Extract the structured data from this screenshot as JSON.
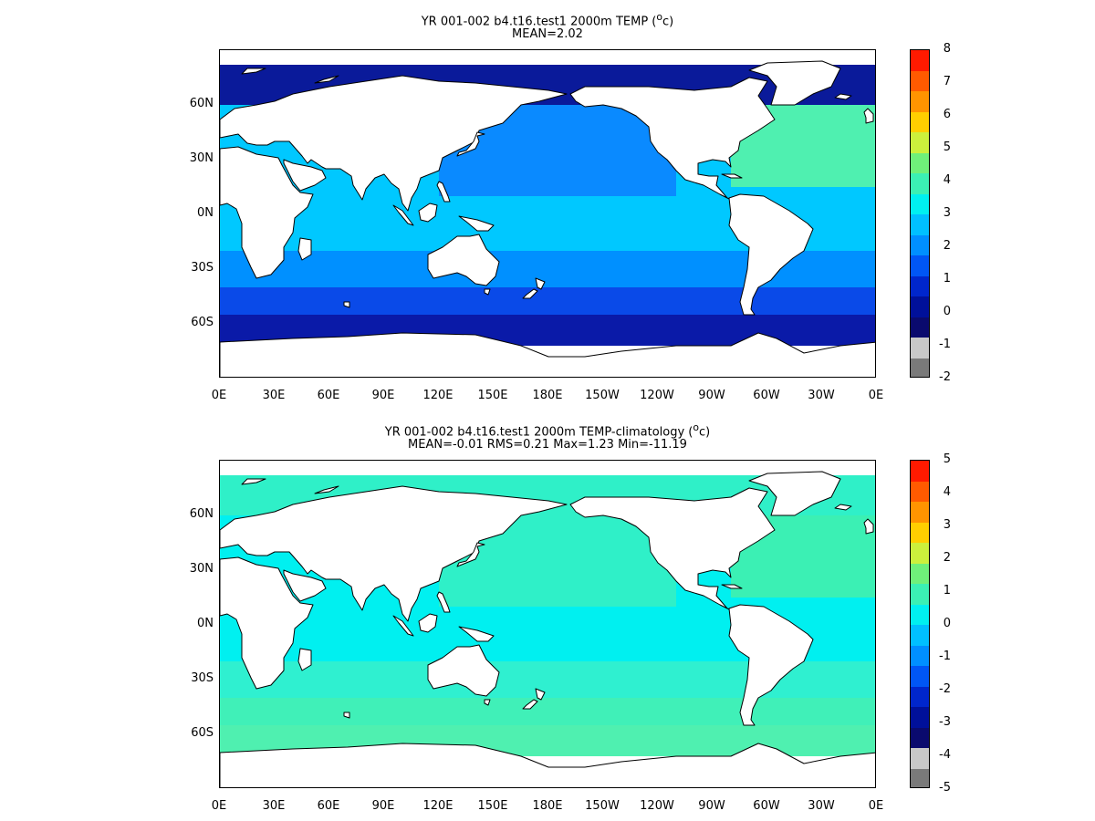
{
  "panels": [
    {
      "title_text": "YR 001-002 b4.t16.test1 2000m TEMP (",
      "title_sup": "o",
      "title_unit_suffix": "c)",
      "subtitle": "MEAN=2.02",
      "lat_labels": [
        "60N",
        "30N",
        "0N",
        "30S",
        "60S"
      ],
      "lon_labels": [
        "0E",
        "30E",
        "60E",
        "90E",
        "120E",
        "150E",
        "180E",
        "150W",
        "120W",
        "90W",
        "60W",
        "30W",
        "0E"
      ],
      "colorbar_labels": [
        "8",
        "7",
        "6",
        "5",
        "4",
        "3",
        "2",
        "1",
        "0",
        "-1",
        "-2"
      ],
      "colorbar_colors": [
        "#ff1a00",
        "#ff5a00",
        "#ff9400",
        "#ffcf00",
        "#ccf03c",
        "#6ff07a",
        "#3bf0b4",
        "#00f0f0",
        "#00c0ff",
        "#008fff",
        "#0056f5",
        "#0026cc",
        "#00109a",
        "#0a0a6e",
        "#c8c8c8",
        "#7a7a7a"
      ],
      "ocean_colors": {
        "arctic": "#0a1a9a",
        "north_pacific": "#0a8aff",
        "north_atlantic": "#4ff0b0",
        "tropical": "#00c8ff",
        "south_mid": "#0090ff",
        "south_high": "#0a4ae8",
        "southern_ocean": "#0a1aa8"
      }
    },
    {
      "title_text": "YR 001-002 b4.t16.test1 2000m TEMP-climatology (",
      "title_sup": "o",
      "title_unit_suffix": "c)",
      "subtitle": "MEAN=-0.01   RMS=0.21   Max=1.23   Min=-11.19",
      "lat_labels": [
        "60N",
        "30N",
        "0N",
        "30S",
        "60S"
      ],
      "lon_labels": [
        "0E",
        "30E",
        "60E",
        "90E",
        "120E",
        "150E",
        "180E",
        "150W",
        "120W",
        "90W",
        "60W",
        "30W",
        "0E"
      ],
      "colorbar_labels": [
        "5",
        "4",
        "3",
        "2",
        "1",
        "0",
        "-1",
        "-2",
        "-3",
        "-4",
        "-5"
      ],
      "colorbar_colors": [
        "#ff1a00",
        "#ff5a00",
        "#ff9400",
        "#ffcf00",
        "#ccf03c",
        "#6ff07a",
        "#3bf0b4",
        "#00f0f0",
        "#00c0ff",
        "#008fff",
        "#0056f5",
        "#0026cc",
        "#00109a",
        "#0a0a6e",
        "#c8c8c8",
        "#7a7a7a"
      ],
      "ocean_colors": {
        "arctic": "#2ff0c8",
        "north_pacific": "#2ff0c8",
        "north_atlantic": "#3bf0b4",
        "tropical": "#00f0f0",
        "south_mid": "#2ff0d0",
        "south_high": "#40f0b8",
        "southern_ocean": "#4ff0b0"
      }
    }
  ]
}
